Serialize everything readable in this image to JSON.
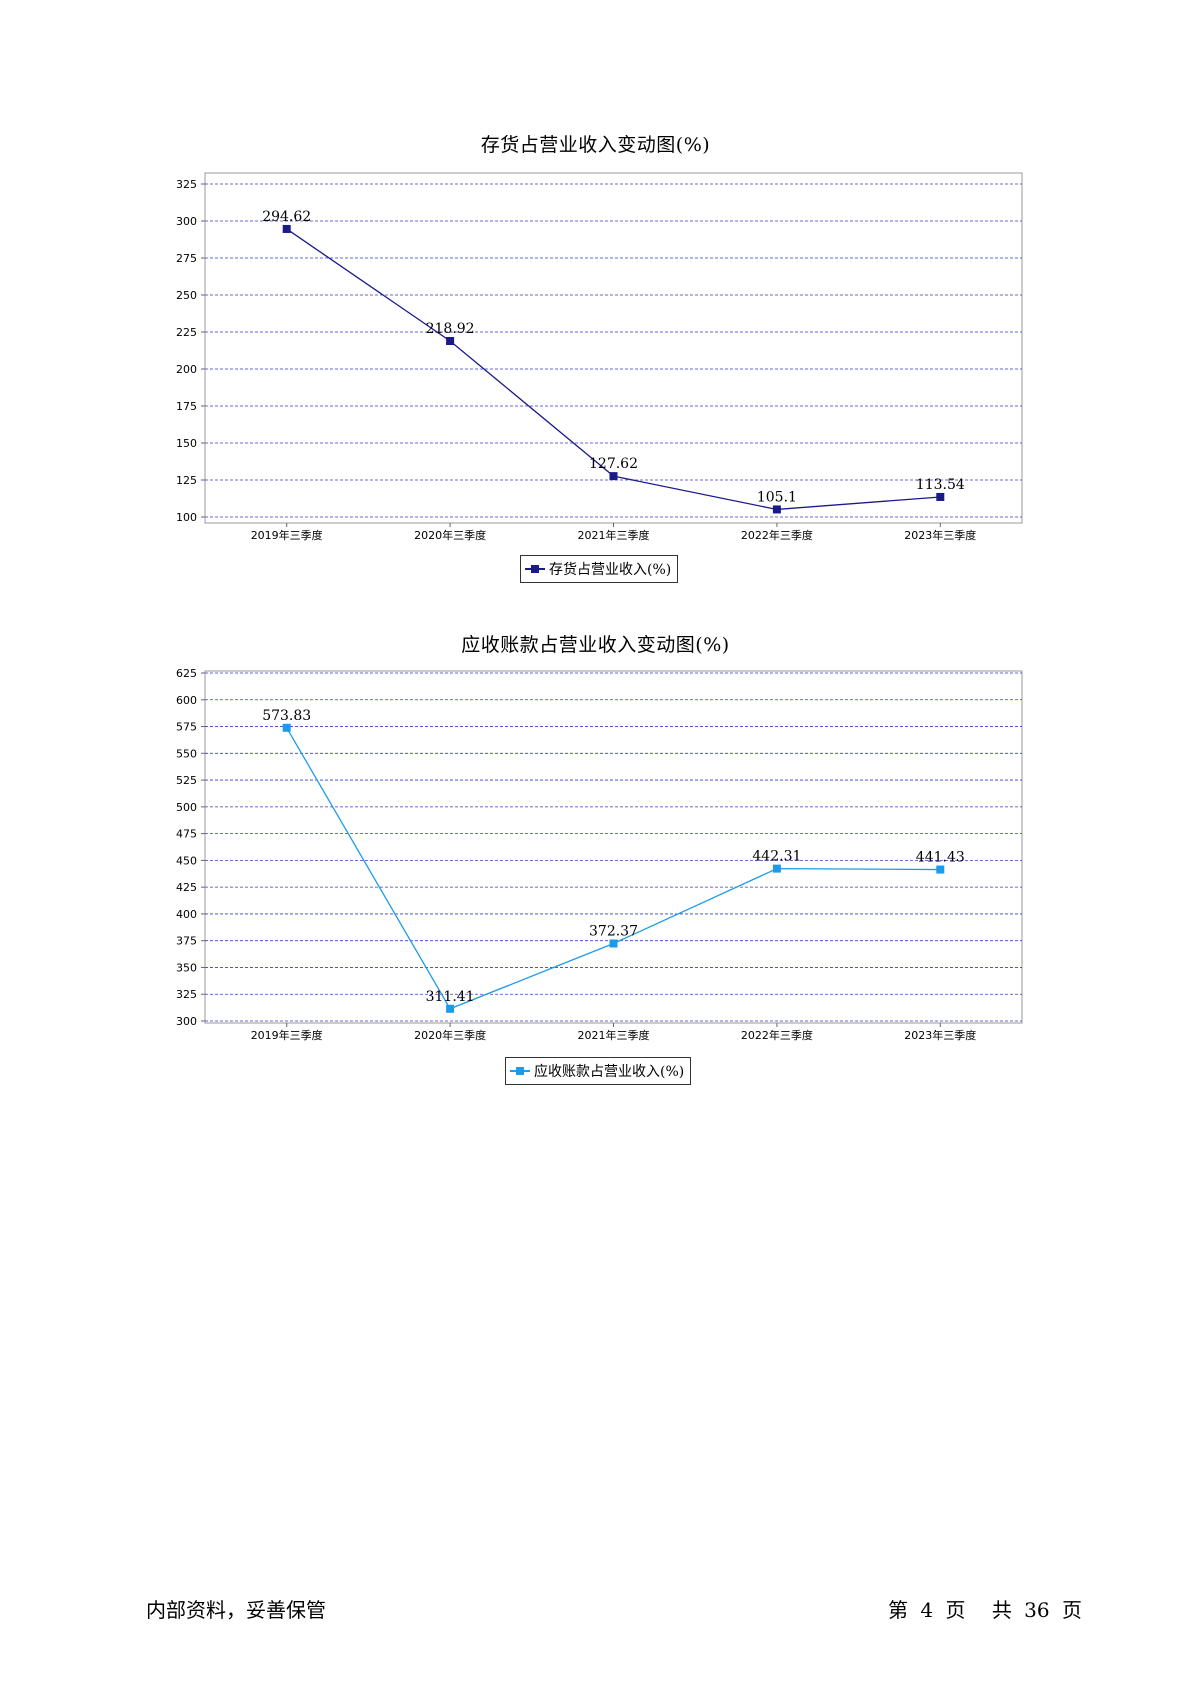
{
  "chart_data": [
    {
      "type": "line",
      "title": "存货占营业收入变动图(%)",
      "categories": [
        "2019年三季度",
        "2020年三季度",
        "2021年三季度",
        "2022年三季度",
        "2023年三季度"
      ],
      "series": [
        {
          "name": "存货占营业收入(%)",
          "values": [
            294.62,
            218.92,
            127.62,
            105.1,
            113.54
          ],
          "labels": [
            "294.62",
            "218.92",
            "127.62",
            "105.1",
            "113.54"
          ],
          "color": "#1a1a8a"
        }
      ],
      "ylim": [
        100,
        325
      ],
      "yticks": [
        100,
        125,
        150,
        175,
        200,
        225,
        250,
        275,
        300,
        325
      ],
      "grid": true,
      "legend": "bottom-center"
    },
    {
      "type": "line",
      "title": "应收账款占营业收入变动图(%)",
      "categories": [
        "2019年三季度",
        "2020年三季度",
        "2021年三季度",
        "2022年三季度",
        "2023年三季度"
      ],
      "series": [
        {
          "name": "应收账款占营业收入(%)",
          "values": [
            573.83,
            311.41,
            372.37,
            442.31,
            441.43
          ],
          "labels": [
            "573.83",
            "311.41",
            "372.37",
            "442.31",
            "441.43"
          ],
          "color": "#1e9be8"
        }
      ],
      "ylim": [
        300,
        625
      ],
      "yticks": [
        300,
        325,
        350,
        375,
        400,
        425,
        450,
        475,
        500,
        525,
        550,
        575,
        600,
        625
      ],
      "grid": true,
      "legend": "bottom-center"
    }
  ],
  "footer": {
    "left": "内部资料，妥善保管",
    "page_word": "第",
    "page_num": "4",
    "page_unit": "页",
    "total_word": "共",
    "total_num": "36",
    "total_unit": "页"
  }
}
